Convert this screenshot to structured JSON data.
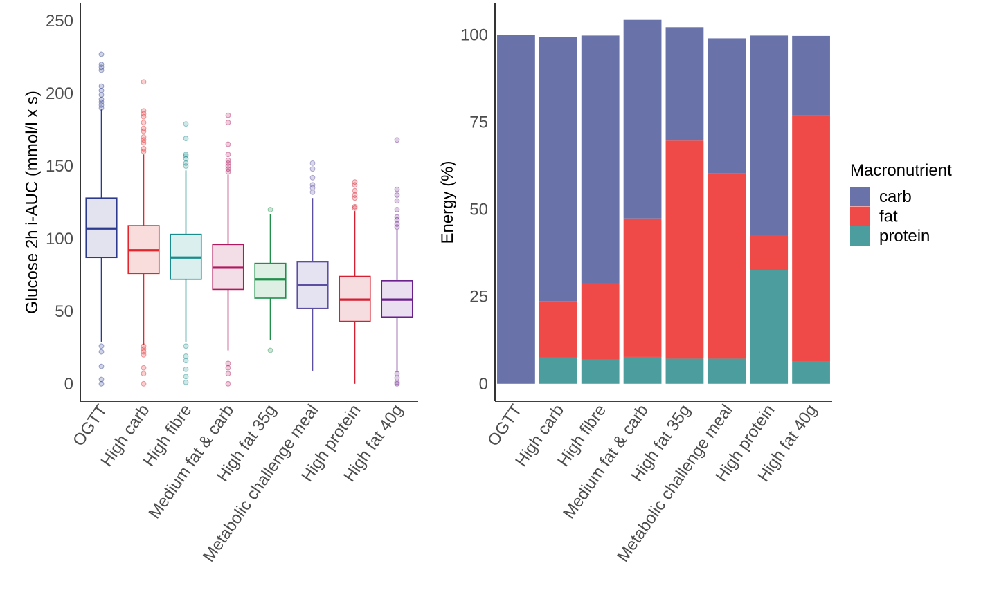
{
  "charts": [
    {
      "type": "box",
      "title": "",
      "xlabel": "",
      "ylabel": "Glucose 2h i-AUC (mmol/l x s)",
      "ylim": [
        -12,
        262
      ],
      "yticks": [
        0,
        50,
        100,
        150,
        200,
        250
      ],
      "categories": [
        "OGTT",
        "High carb",
        "High fibre",
        "Medium fat & carb",
        "High fat 35g",
        "Metabolic challenge meal",
        "High protein",
        "High fat 40g"
      ],
      "colors": [
        "#2b3a8f",
        "#e3262b",
        "#1a8c8c",
        "#b0195f",
        "#1f8f4a",
        "#5a4fa0",
        "#d42030",
        "#6a1f8a"
      ],
      "fills": [
        "#e2e3ef",
        "#f9dcdc",
        "#dcefef",
        "#f3dde6",
        "#ddf0e3",
        "#e5e3f1",
        "#f6dde0",
        "#eadff0"
      ],
      "boxes": [
        {
          "q1": 87,
          "median": 107,
          "q3": 128,
          "whisker_low": 29,
          "whisker_high": 189,
          "outliers": [
            0,
            3,
            12,
            22,
            26,
            190,
            192,
            194,
            196,
            199,
            202,
            205,
            216,
            218,
            220,
            227
          ]
        },
        {
          "q1": 76,
          "median": 92,
          "q3": 109,
          "whisker_low": 27,
          "whisker_high": 158,
          "outliers": [
            0,
            7,
            11,
            20,
            22,
            24,
            26,
            160,
            162,
            166,
            168,
            170,
            174,
            176,
            180,
            184,
            186,
            188,
            208
          ]
        },
        {
          "q1": 72,
          "median": 87,
          "q3": 103,
          "whisker_low": 29,
          "whisker_high": 147,
          "outliers": [
            1,
            5,
            10,
            16,
            19,
            26,
            150,
            152,
            155,
            157,
            158,
            169,
            179
          ]
        },
        {
          "q1": 65,
          "median": 80,
          "q3": 96,
          "whisker_low": 23,
          "whisker_high": 144,
          "outliers": [
            0,
            7,
            11,
            14,
            146,
            148,
            150,
            152,
            154,
            158,
            165,
            180,
            185
          ]
        },
        {
          "q1": 59,
          "median": 72,
          "q3": 83,
          "whisker_low": 30,
          "whisker_high": 117,
          "outliers": [
            23,
            120
          ]
        },
        {
          "q1": 52,
          "median": 68,
          "q3": 84,
          "whisker_low": 9,
          "whisker_high": 128,
          "outliers": [
            132,
            135,
            137,
            142,
            148,
            152
          ]
        },
        {
          "q1": 43,
          "median": 58,
          "q3": 74,
          "whisker_low": 0,
          "whisker_high": 119,
          "outliers": [
            121,
            122,
            128,
            130,
            133,
            137,
            139
          ]
        },
        {
          "q1": 46,
          "median": 58,
          "q3": 71,
          "whisker_low": 8,
          "whisker_high": 106,
          "outliers": [
            0,
            1,
            4,
            7,
            108,
            110,
            113,
            115,
            120,
            126,
            130,
            134,
            168
          ]
        }
      ]
    },
    {
      "type": "bar",
      "stacked": true,
      "title": "",
      "xlabel": "",
      "ylabel": "Energy (%)",
      "ylim": [
        -5,
        109
      ],
      "yticks": [
        0,
        25,
        50,
        75,
        100
      ],
      "categories": [
        "OGTT",
        "High carb",
        "High fibre",
        "Medium fat & carb",
        "High fat 35g",
        "Metabolic challenge meal",
        "High protein",
        "High fat 40g"
      ],
      "legend_title": "Macronutrient",
      "legend_position": "right",
      "series": [
        {
          "name": "protein",
          "color": "#4c9e9e",
          "values": [
            0,
            7.5,
            7,
            7.7,
            7.2,
            7.2,
            32.6,
            6.5
          ]
        },
        {
          "name": "fat",
          "color": "#ef4a48",
          "values": [
            0,
            16.2,
            21.8,
            39.7,
            62.5,
            53.2,
            10,
            70.5
          ]
        },
        {
          "name": "carb",
          "color": "#6a72aa",
          "values": [
            100,
            75.6,
            71,
            56.9,
            32.5,
            38.6,
            57.2,
            22.7
          ]
        }
      ],
      "legend_order": [
        "carb",
        "fat",
        "protein"
      ]
    }
  ]
}
